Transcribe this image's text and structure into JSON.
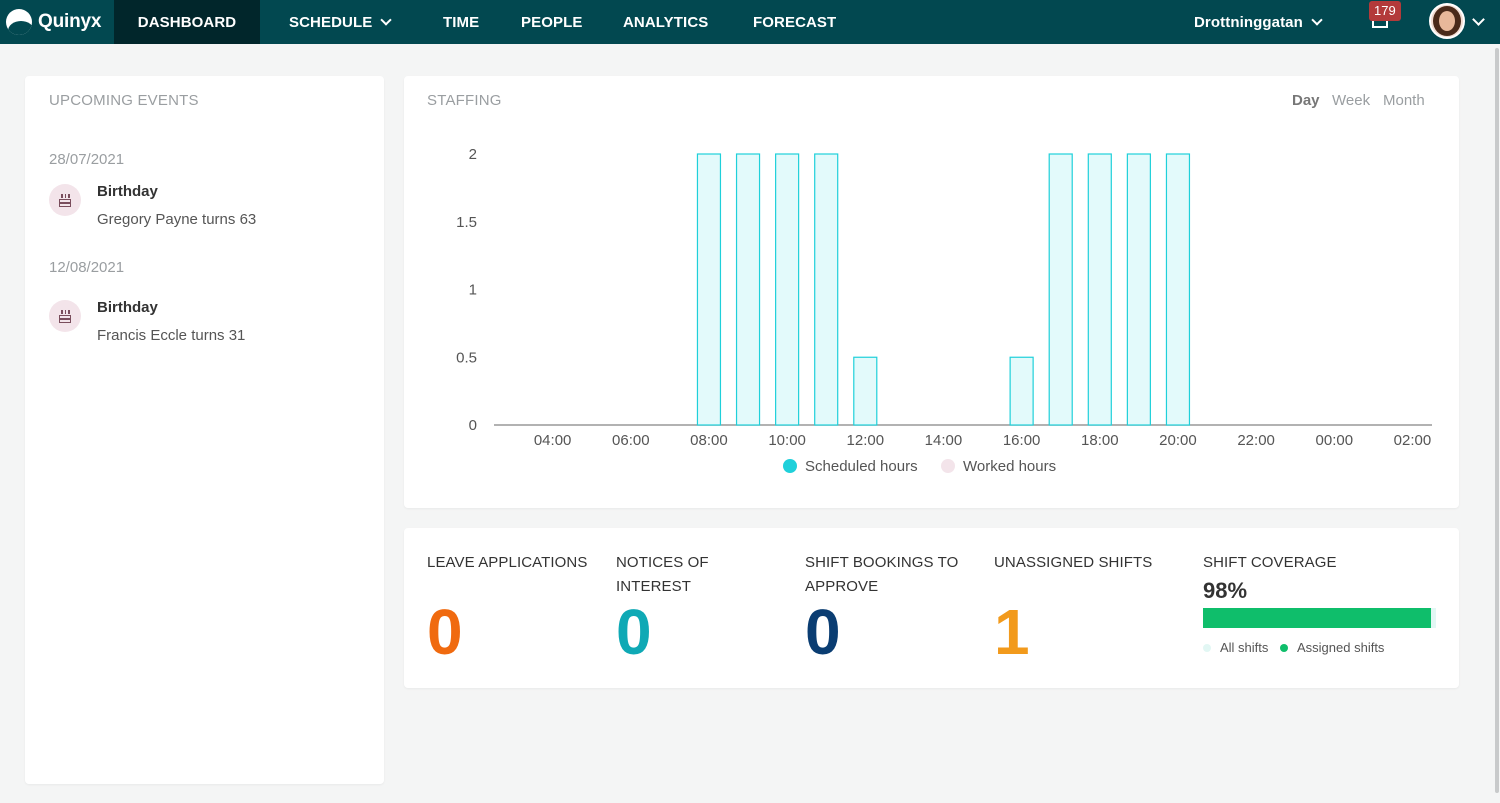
{
  "app": {
    "brand": "Quinyx"
  },
  "nav": {
    "items": [
      {
        "label": "DASHBOARD",
        "active": true
      },
      {
        "label": "SCHEDULE",
        "has_dropdown": true
      },
      {
        "label": "TIME"
      },
      {
        "label": "PEOPLE"
      },
      {
        "label": "ANALYTICS"
      },
      {
        "label": "FORECAST"
      }
    ],
    "unit_selector": "Drottninggatan",
    "notification_count": "179"
  },
  "events": {
    "title": "UPCOMING EVENTS",
    "groups": [
      {
        "date": "28/07/2021",
        "title": "Birthday",
        "desc": "Gregory Payne turns 63",
        "icon": "birthday-cake-icon"
      },
      {
        "date": "12/08/2021",
        "title": "Birthday",
        "desc": "Francis Eccle turns 31",
        "icon": "birthday-cake-icon"
      }
    ]
  },
  "staffing": {
    "title": "STAFFING",
    "ranges": [
      "Day",
      "Week",
      "Month"
    ],
    "active_range": "Day"
  },
  "chart_data": {
    "type": "bar",
    "title": "STAFFING",
    "xlabel": "",
    "ylabel": "",
    "ylim": [
      0,
      2
    ],
    "y_ticks": [
      "0",
      "0.5",
      "1",
      "1.5",
      "2"
    ],
    "x_ticks": [
      "04:00",
      "06:00",
      "08:00",
      "10:00",
      "12:00",
      "14:00",
      "16:00",
      "18:00",
      "20:00",
      "22:00",
      "00:00",
      "02:00"
    ],
    "categories": [
      "03:00",
      "04:00",
      "05:00",
      "06:00",
      "07:00",
      "08:00",
      "09:00",
      "10:00",
      "11:00",
      "12:00",
      "13:00",
      "14:00",
      "15:00",
      "16:00",
      "17:00",
      "18:00",
      "19:00",
      "20:00",
      "21:00",
      "22:00",
      "23:00",
      "00:00",
      "01:00",
      "02:00"
    ],
    "series": [
      {
        "name": "Scheduled hours",
        "color": "#1fd0da",
        "fill": "#e3fafb",
        "values": [
          0,
          0,
          0,
          0,
          0,
          2,
          2,
          2,
          2,
          0.5,
          0,
          0,
          0,
          0.5,
          2,
          2,
          2,
          2,
          0,
          0,
          0,
          0,
          0,
          0
        ]
      },
      {
        "name": "Worked hours",
        "color": "#f3e4ea",
        "values": [
          0,
          0,
          0,
          0,
          0,
          0,
          0,
          0,
          0,
          0,
          0,
          0,
          0,
          0,
          0,
          0,
          0,
          0,
          0,
          0,
          0,
          0,
          0,
          0
        ]
      }
    ],
    "legend": "bottom",
    "grid": false
  },
  "stats": {
    "leave": {
      "label": "LEAVE APPLICATIONS",
      "value": "0",
      "color": "#f06a0f"
    },
    "notices": {
      "label": "NOTICES OF INTEREST",
      "value": "0",
      "color": "#0fa9b5"
    },
    "bookings": {
      "label": "SHIFT BOOKINGS TO APPROVE",
      "value": "0",
      "color": "#0a3d72"
    },
    "unassigned": {
      "label": "UNASSIGNED SHIFTS",
      "value": "1",
      "color": "#f29a1c"
    },
    "coverage": {
      "label": "SHIFT COVERAGE",
      "percent_text": "98%",
      "percent": 98,
      "legend_all": "All shifts",
      "legend_assigned": "Assigned shifts",
      "all_color": "#e2f7f4",
      "assigned_color": "#0fbe6b"
    }
  }
}
